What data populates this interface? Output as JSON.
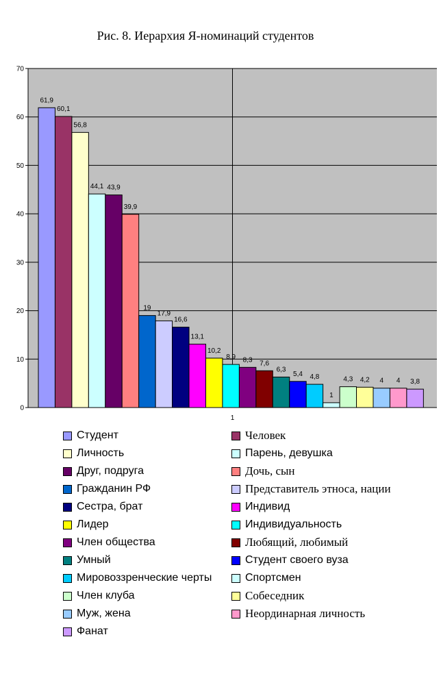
{
  "chart_data": {
    "type": "bar",
    "title": "Рис. 8. Иерархия Я-номинаций студентов",
    "categories": [
      "1"
    ],
    "ylim": [
      0,
      70
    ],
    "yticks": [
      0,
      10,
      20,
      30,
      40,
      50,
      60,
      70
    ],
    "grid": true,
    "legend_position": "bottom",
    "plot_background": "#c0c0c0",
    "series": [
      {
        "name": "Студент",
        "value": 61.9,
        "label": "61,9",
        "color": "#9999ff"
      },
      {
        "name": "Человек",
        "value": 60.1,
        "label": "60,1",
        "color": "#993366"
      },
      {
        "name": "Личность",
        "value": 56.8,
        "label": "56,8",
        "color": "#ffffcc"
      },
      {
        "name": "Парень, девушка",
        "value": 44.1,
        "label": "44,1",
        "color": "#ccffff"
      },
      {
        "name": "Друг, подруга",
        "value": 43.9,
        "label": "43,9",
        "color": "#660066"
      },
      {
        "name": "Дочь, сын",
        "value": 39.9,
        "label": "39,9",
        "color": "#ff8080"
      },
      {
        "name": "Гражданин РФ",
        "value": 19,
        "label": "19",
        "color": "#0066cc"
      },
      {
        "name": "Представитель этноса, нации",
        "value": 17.9,
        "label": "17,9",
        "color": "#ccccff"
      },
      {
        "name": "Сестра, брат",
        "value": 16.6,
        "label": "16,6",
        "color": "#000080"
      },
      {
        "name": "Индивид",
        "value": 13.1,
        "label": "13,1",
        "color": "#ff00ff"
      },
      {
        "name": "Лидер",
        "value": 10.2,
        "label": "10,2",
        "color": "#ffff00"
      },
      {
        "name": "Индивидуальность",
        "value": 8.9,
        "label": "8,9",
        "color": "#00ffff"
      },
      {
        "name": "Член общества",
        "value": 8.3,
        "label": "8,3",
        "color": "#800080"
      },
      {
        "name": "Любящий, любимый",
        "value": 7.6,
        "label": "7,6",
        "color": "#800000"
      },
      {
        "name": "Умный",
        "value": 6.3,
        "label": "6,3",
        "color": "#008080"
      },
      {
        "name": "Студент своего вуза",
        "value": 5.4,
        "label": "5,4",
        "color": "#0000ff"
      },
      {
        "name": "Мировоззренческие черты",
        "value": 4.8,
        "label": "4,8",
        "color": "#00ccff"
      },
      {
        "name": "Спортсмен",
        "value": 1,
        "label": "1",
        "color": "#ccffff"
      },
      {
        "name": "Член клуба",
        "value": 4.3,
        "label": "4,3",
        "color": "#ccffcc"
      },
      {
        "name": "Собеседник",
        "value": 4.2,
        "label": "4,2",
        "color": "#ffff99"
      },
      {
        "name": "Муж, жена",
        "value": 4,
        "label": "4",
        "color": "#99ccff"
      },
      {
        "name": "Неординарная личность",
        "value": 4,
        "label": "4",
        "color": "#ff99cc"
      },
      {
        "name": "Фанат",
        "value": 3.8,
        "label": "3,8",
        "color": "#cc99ff"
      }
    ]
  }
}
